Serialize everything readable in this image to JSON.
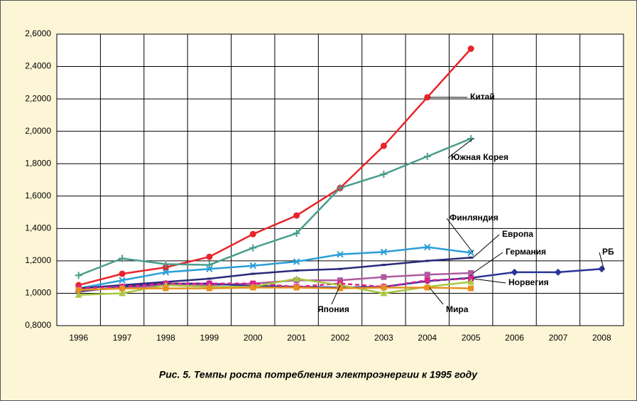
{
  "chart_data": {
    "type": "line",
    "title": "Рис. 5.  Темпы роста потребления электроэнергии к 1995 году",
    "categories": [
      "1996",
      "1997",
      "1998",
      "1999",
      "2000",
      "2001",
      "2002",
      "2003",
      "2004",
      "2005",
      "2006",
      "2007",
      "2008"
    ],
    "ylim": [
      0.8,
      2.6
    ],
    "yticks": [
      {
        "value": 0.8,
        "label": "0,8000"
      },
      {
        "value": 1.0,
        "label": "1,0000"
      },
      {
        "value": 1.2,
        "label": "1,2000"
      },
      {
        "value": 1.4,
        "label": "1,4000"
      },
      {
        "value": 1.6,
        "label": "1,6000"
      },
      {
        "value": 1.8,
        "label": "1,8000"
      },
      {
        "value": 2.0,
        "label": "2,0000"
      },
      {
        "value": 2.2,
        "label": "2,2000"
      },
      {
        "value": 2.4,
        "label": "2,4000"
      },
      {
        "value": 2.6,
        "label": "2,6000"
      }
    ],
    "grid": true,
    "series": [
      {
        "name": "Китай",
        "color": "#e8252b",
        "marker": "circle",
        "values": [
          1.05,
          1.12,
          1.16,
          1.225,
          1.365,
          1.48,
          1.65,
          1.91,
          2.21,
          2.51,
          null,
          null,
          null
        ]
      },
      {
        "name": "Южная Корея",
        "color": "#4a9e8c",
        "marker": "plus",
        "values": [
          1.11,
          1.215,
          1.18,
          1.175,
          1.28,
          1.37,
          1.65,
          1.735,
          1.845,
          1.955,
          null,
          null,
          null
        ]
      },
      {
        "name": "Финляндия",
        "color": "#2a9ed8",
        "marker": "x",
        "values": [
          1.03,
          1.08,
          1.13,
          1.15,
          1.17,
          1.195,
          1.24,
          1.255,
          1.285,
          1.25,
          null,
          null,
          null
        ]
      },
      {
        "name": "Европа",
        "color": "#2a2a7a",
        "marker": "dash",
        "values": [
          1.03,
          1.05,
          1.07,
          1.09,
          1.12,
          1.14,
          1.15,
          1.175,
          1.2,
          1.22,
          null,
          null,
          null
        ]
      },
      {
        "name": "Германия",
        "color": "#b05aa0",
        "marker": "square",
        "values": [
          1.02,
          1.03,
          1.05,
          1.05,
          1.06,
          1.08,
          1.08,
          1.1,
          1.115,
          1.125,
          null,
          null,
          null
        ]
      },
      {
        "name": "РБ",
        "color": "#2a3598",
        "marker": "diamond",
        "values": [
          1.01,
          1.04,
          1.06,
          1.06,
          1.045,
          1.04,
          1.035,
          1.04,
          1.075,
          1.095,
          1.13,
          1.13,
          1.15
        ]
      },
      {
        "name": "Норвегия",
        "color": "#e0208a",
        "marker": "square",
        "dashed": true,
        "values": [
          1.03,
          1.04,
          1.06,
          1.06,
          1.06,
          1.04,
          1.06,
          1.04,
          1.08,
          1.09,
          null,
          null,
          null
        ]
      },
      {
        "name": "Япония",
        "color": "#a8c840",
        "marker": "triangle",
        "values": [
          0.99,
          1.0,
          1.05,
          1.04,
          1.04,
          1.09,
          1.05,
          1.0,
          1.04,
          1.07,
          null,
          null,
          null
        ]
      },
      {
        "name": "Мира",
        "color": "#e89020",
        "marker": "square",
        "values": [
          1.02,
          1.03,
          1.03,
          1.03,
          1.035,
          1.035,
          1.03,
          1.035,
          1.035,
          1.03,
          null,
          null,
          null
        ]
      }
    ]
  }
}
